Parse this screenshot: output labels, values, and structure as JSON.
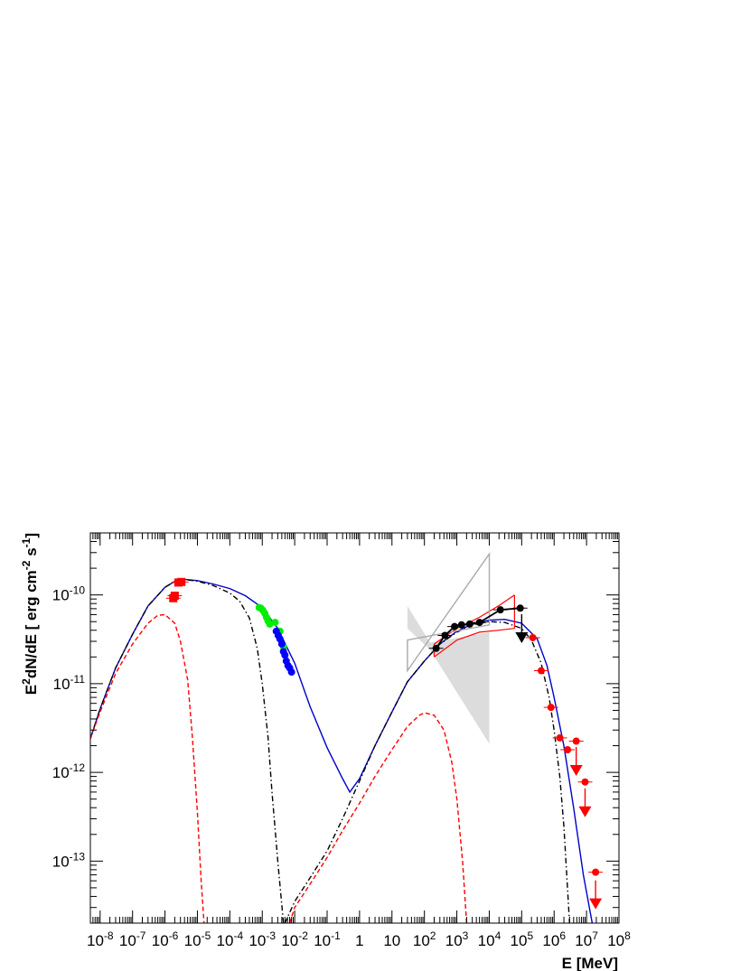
{
  "chart_data": {
    "type": "scatter",
    "xlabel": "E [MeV]",
    "ylabel_parts": [
      "E",
      "2",
      "dN/dE [ erg cm",
      "-2",
      " s",
      "-1",
      "]"
    ],
    "x_scale": "log",
    "y_scale": "log",
    "xlim": [
      5e-09,
      100000000.0
    ],
    "ylim": [
      2e-14,
      5e-10
    ],
    "x_ticks": [
      {
        "value": 1e-08,
        "base": "10",
        "exp": "-8"
      },
      {
        "value": 1e-07,
        "base": "10",
        "exp": "-7"
      },
      {
        "value": 1e-06,
        "base": "10",
        "exp": "-6"
      },
      {
        "value": 1e-05,
        "base": "10",
        "exp": "-5"
      },
      {
        "value": 0.0001,
        "base": "10",
        "exp": "-4"
      },
      {
        "value": 0.001,
        "base": "10",
        "exp": "-3"
      },
      {
        "value": 0.01,
        "base": "10",
        "exp": "-2"
      },
      {
        "value": 0.1,
        "base": "10",
        "exp": "-1"
      },
      {
        "value": 1,
        "base": "1",
        "exp": ""
      },
      {
        "value": 10,
        "base": "10",
        "exp": ""
      },
      {
        "value": 100,
        "base": "10",
        "exp": "2"
      },
      {
        "value": 1000.0,
        "base": "10",
        "exp": "3"
      },
      {
        "value": 10000.0,
        "base": "10",
        "exp": "4"
      },
      {
        "value": 100000.0,
        "base": "10",
        "exp": "5"
      },
      {
        "value": 1000000.0,
        "base": "10",
        "exp": "6"
      },
      {
        "value": 10000000.0,
        "base": "10",
        "exp": "7"
      },
      {
        "value": 100000000.0,
        "base": "10",
        "exp": "8"
      }
    ],
    "y_ticks": [
      {
        "value": 1e-10,
        "base": "10",
        "exp": "-10"
      },
      {
        "value": 1e-11,
        "base": "10",
        "exp": "-11"
      },
      {
        "value": 1e-12,
        "base": "10",
        "exp": "-12"
      },
      {
        "value": 1e-13,
        "base": "10",
        "exp": "-13"
      }
    ],
    "series": [
      {
        "type": "line",
        "color": "#0000cc",
        "dash": "solid",
        "points": [
          [
            5e-09,
            2.4e-12
          ],
          [
            1e-08,
            5.2e-12
          ],
          [
            3e-08,
            1.5e-11
          ],
          [
            1e-07,
            3.6e-11
          ],
          [
            3e-07,
            7.5e-11
          ],
          [
            1e-06,
            1.22e-10
          ],
          [
            2e-06,
            1.42e-10
          ],
          [
            4e-06,
            1.5e-10
          ],
          [
            1e-05,
            1.45e-10
          ],
          [
            3e-05,
            1.33e-10
          ],
          [
            0.0001,
            1.18e-10
          ],
          [
            0.0003,
            9.8e-11
          ],
          [
            0.001,
            7.2e-11
          ],
          [
            0.003,
            4.2e-11
          ],
          [
            0.01,
            1.7e-11
          ],
          [
            0.03,
            5.5e-12
          ],
          [
            0.1,
            1.9e-12
          ],
          [
            0.3,
            8.5e-13
          ],
          [
            0.5,
            6e-13
          ],
          [
            1,
            8.5e-13
          ],
          [
            3,
            2e-12
          ],
          [
            10,
            4.8e-12
          ],
          [
            30,
            1.05e-11
          ],
          [
            100,
            1.8e-11
          ],
          [
            300,
            2.8e-11
          ],
          [
            1000,
            3.9e-11
          ],
          [
            3000,
            4.7e-11
          ],
          [
            10000.0,
            5.2e-11
          ],
          [
            30000.0,
            5.3e-11
          ],
          [
            100000.0,
            4.8e-11
          ],
          [
            300000.0,
            3.2e-11
          ],
          [
            600000.0,
            1.6e-11
          ],
          [
            1000000.0,
            7e-12
          ],
          [
            2000000.0,
            2e-12
          ],
          [
            4000000.0,
            4e-13
          ],
          [
            8000000.0,
            7e-14
          ],
          [
            15000000.0,
            2e-14
          ]
        ]
      },
      {
        "type": "line",
        "color": "#000000",
        "dash": "dashdot",
        "points": [
          [
            5e-09,
            2.4e-12
          ],
          [
            1e-08,
            5.2e-12
          ],
          [
            3e-08,
            1.5e-11
          ],
          [
            1e-07,
            3.6e-11
          ],
          [
            3e-07,
            7.5e-11
          ],
          [
            1e-06,
            1.22e-10
          ],
          [
            2e-06,
            1.42e-10
          ],
          [
            4e-06,
            1.49e-10
          ],
          [
            1e-05,
            1.43e-10
          ],
          [
            3e-05,
            1.28e-10
          ],
          [
            0.0001,
            1.05e-10
          ],
          [
            0.0002,
            8.5e-11
          ],
          [
            0.0004,
            5.5e-11
          ],
          [
            0.0007,
            2.5e-11
          ],
          [
            0.001,
            1e-11
          ],
          [
            0.0015,
            2.5e-12
          ],
          [
            0.002,
            6e-13
          ],
          [
            0.003,
            1e-13
          ],
          [
            0.0045,
            2e-14
          ]
        ]
      },
      {
        "type": "line",
        "color": "#000000",
        "dash": "dashdot",
        "points": [
          [
            0.005,
            2e-14
          ],
          [
            0.01,
            3.5e-14
          ],
          [
            0.03,
            6.5e-14
          ],
          [
            0.1,
            1.3e-13
          ],
          [
            0.3,
            3e-13
          ],
          [
            1,
            8e-13
          ],
          [
            3,
            2e-12
          ],
          [
            10,
            4.8e-12
          ],
          [
            30,
            1.05e-11
          ],
          [
            100,
            1.8e-11
          ],
          [
            300,
            2.8e-11
          ],
          [
            1000,
            3.8e-11
          ],
          [
            3000,
            4.6e-11
          ],
          [
            10000.0,
            5e-11
          ],
          [
            30000.0,
            4.9e-11
          ],
          [
            100000.0,
            4.2e-11
          ],
          [
            200000.0,
            3.1e-11
          ],
          [
            400000.0,
            1.7e-11
          ],
          [
            700000.0,
            7e-12
          ],
          [
            1000000.0,
            3e-12
          ],
          [
            1500000.0,
            9e-13
          ],
          [
            2000000.0,
            2.5e-13
          ],
          [
            3000000.0,
            2e-14
          ]
        ]
      },
      {
        "type": "line",
        "color": "#ff0000",
        "dash": "dashed",
        "points": [
          [
            5e-09,
            2.4e-12
          ],
          [
            1e-08,
            4.8e-12
          ],
          [
            3e-08,
            1.3e-11
          ],
          [
            1e-07,
            2.8e-11
          ],
          [
            3e-07,
            4.8e-11
          ],
          [
            6e-07,
            5.9e-11
          ],
          [
            1e-06,
            6e-11
          ],
          [
            2e-06,
            4.8e-11
          ],
          [
            3e-06,
            3e-11
          ],
          [
            5e-06,
            1.1e-11
          ],
          [
            7e-06,
            2.5e-12
          ],
          [
            1e-05,
            3.5e-13
          ],
          [
            1.3e-05,
            6e-14
          ],
          [
            1.6e-05,
            2e-14
          ]
        ]
      },
      {
        "type": "line",
        "color": "#ff0000",
        "dash": "dashed",
        "points": [
          [
            0.007,
            2e-14
          ],
          [
            0.01,
            3e-14
          ],
          [
            0.03,
            5.5e-14
          ],
          [
            0.1,
            1.1e-13
          ],
          [
            0.3,
            2.2e-13
          ],
          [
            1,
            4.5e-13
          ],
          [
            3,
            9e-13
          ],
          [
            10,
            1.8e-12
          ],
          [
            30,
            3.3e-12
          ],
          [
            70,
            4.4e-12
          ],
          [
            100,
            4.7e-12
          ],
          [
            200,
            4.4e-12
          ],
          [
            400,
            3e-12
          ],
          [
            700,
            1.3e-12
          ],
          [
            1000,
            5e-13
          ],
          [
            1500,
            1e-13
          ],
          [
            2000,
            2e-14
          ]
        ]
      },
      {
        "type": "points",
        "marker": "square",
        "color": "#ff0000",
        "points": [
          [
            1.8e-06,
            9.2e-11
          ],
          [
            2e-06,
            9.8e-11
          ],
          [
            2.6e-06,
            1.38e-10
          ],
          [
            3.2e-06,
            1.4e-10
          ]
        ]
      },
      {
        "type": "points",
        "marker": "circle",
        "color": "#00ee00",
        "points": [
          [
            0.0008,
            7.2e-11
          ],
          [
            0.0009,
            7.1e-11
          ],
          [
            0.00105,
            6.7e-11
          ],
          [
            0.0012,
            6.2e-11
          ],
          [
            0.00135,
            5.6e-11
          ],
          [
            0.0015,
            5.1e-11
          ],
          [
            0.0017,
            4.7e-11
          ],
          [
            0.0025,
            4.9e-11
          ],
          [
            0.0035,
            3.9e-11
          ],
          [
            0.0045,
            2.6e-11
          ]
        ]
      },
      {
        "type": "points",
        "marker": "circle",
        "color": "#0000ff",
        "points": [
          [
            0.0027,
            3.9e-11
          ],
          [
            0.0031,
            3.5e-11
          ],
          [
            0.0035,
            3.2e-11
          ],
          [
            0.004,
            2.8e-11
          ],
          [
            0.0045,
            2.3e-11
          ],
          [
            0.005,
            2.1e-11
          ],
          [
            0.0055,
            1.8e-11
          ],
          [
            0.0062,
            1.6e-11
          ],
          [
            0.007,
            1.5e-11
          ],
          [
            0.008,
            1.35e-11
          ]
        ]
      },
      {
        "type": "points",
        "marker": "circle",
        "color": "#000000",
        "line": true,
        "points": [
          [
            230,
            2.5e-11
          ],
          [
            430,
            3.5e-11
          ],
          [
            850,
            4.4e-11
          ],
          [
            1400,
            4.6e-11
          ],
          [
            2500,
            4.7e-11
          ],
          [
            5000,
            4.9e-11
          ],
          [
            22000.0,
            6.8e-11
          ],
          [
            90000.0,
            7.1e-11
          ]
        ]
      },
      {
        "type": "points",
        "marker": "circle",
        "color": "#ff0000",
        "points": [
          [
            220000.0,
            3.3e-11
          ],
          [
            400000.0,
            1.4e-11
          ],
          [
            800000.0,
            5.4e-12
          ],
          [
            1500000.0,
            2.45e-12
          ],
          [
            2600000.0,
            1.8e-12
          ],
          [
            4800000.0,
            2.25e-12
          ],
          [
            9000000.0,
            7.8e-13
          ],
          [
            19000000.0,
            7.5e-14
          ]
        ]
      },
      {
        "type": "upper_limits",
        "color": "#ff0000",
        "points": [
          [
            4800000.0,
            1.05e-12
          ],
          [
            9000000.0,
            3.6e-13
          ],
          [
            19000000.0,
            3.3e-14
          ]
        ]
      },
      {
        "type": "upper_limits",
        "color": "#000000",
        "points": [
          [
            100000.0,
            3.3e-11
          ]
        ]
      },
      {
        "type": "band",
        "color": "#ff0000",
        "upper": [
          [
            200,
            2.8e-11
          ],
          [
            1000.0,
            4.2e-11
          ],
          [
            5000.0,
            5.6e-11
          ],
          [
            20000.0,
            7.6e-11
          ],
          [
            60000.0,
            1e-10
          ]
        ],
        "lower": [
          [
            200,
            2e-11
          ],
          [
            1000.0,
            3.1e-11
          ],
          [
            5000.0,
            3.8e-11
          ],
          [
            20000.0,
            4e-11
          ],
          [
            60000.0,
            4.2e-11
          ]
        ]
      },
      {
        "type": "bowtie",
        "color": "#aaaaaa",
        "outline": [
          [
            30,
            1.4e-11
          ],
          [
            10000.0,
            2.9e-10
          ],
          [
            10000.0,
            4.6e-11
          ],
          [
            30,
            3.1e-11
          ]
        ],
        "shaded": [
          [
            30,
            4.2e-11
          ],
          [
            150,
            2.4e-11
          ],
          [
            10000.0,
            2.1e-12
          ],
          [
            10000.0,
            3.8e-11
          ],
          [
            150,
            2.9e-11
          ],
          [
            30,
            7.5e-11
          ]
        ]
      }
    ]
  }
}
